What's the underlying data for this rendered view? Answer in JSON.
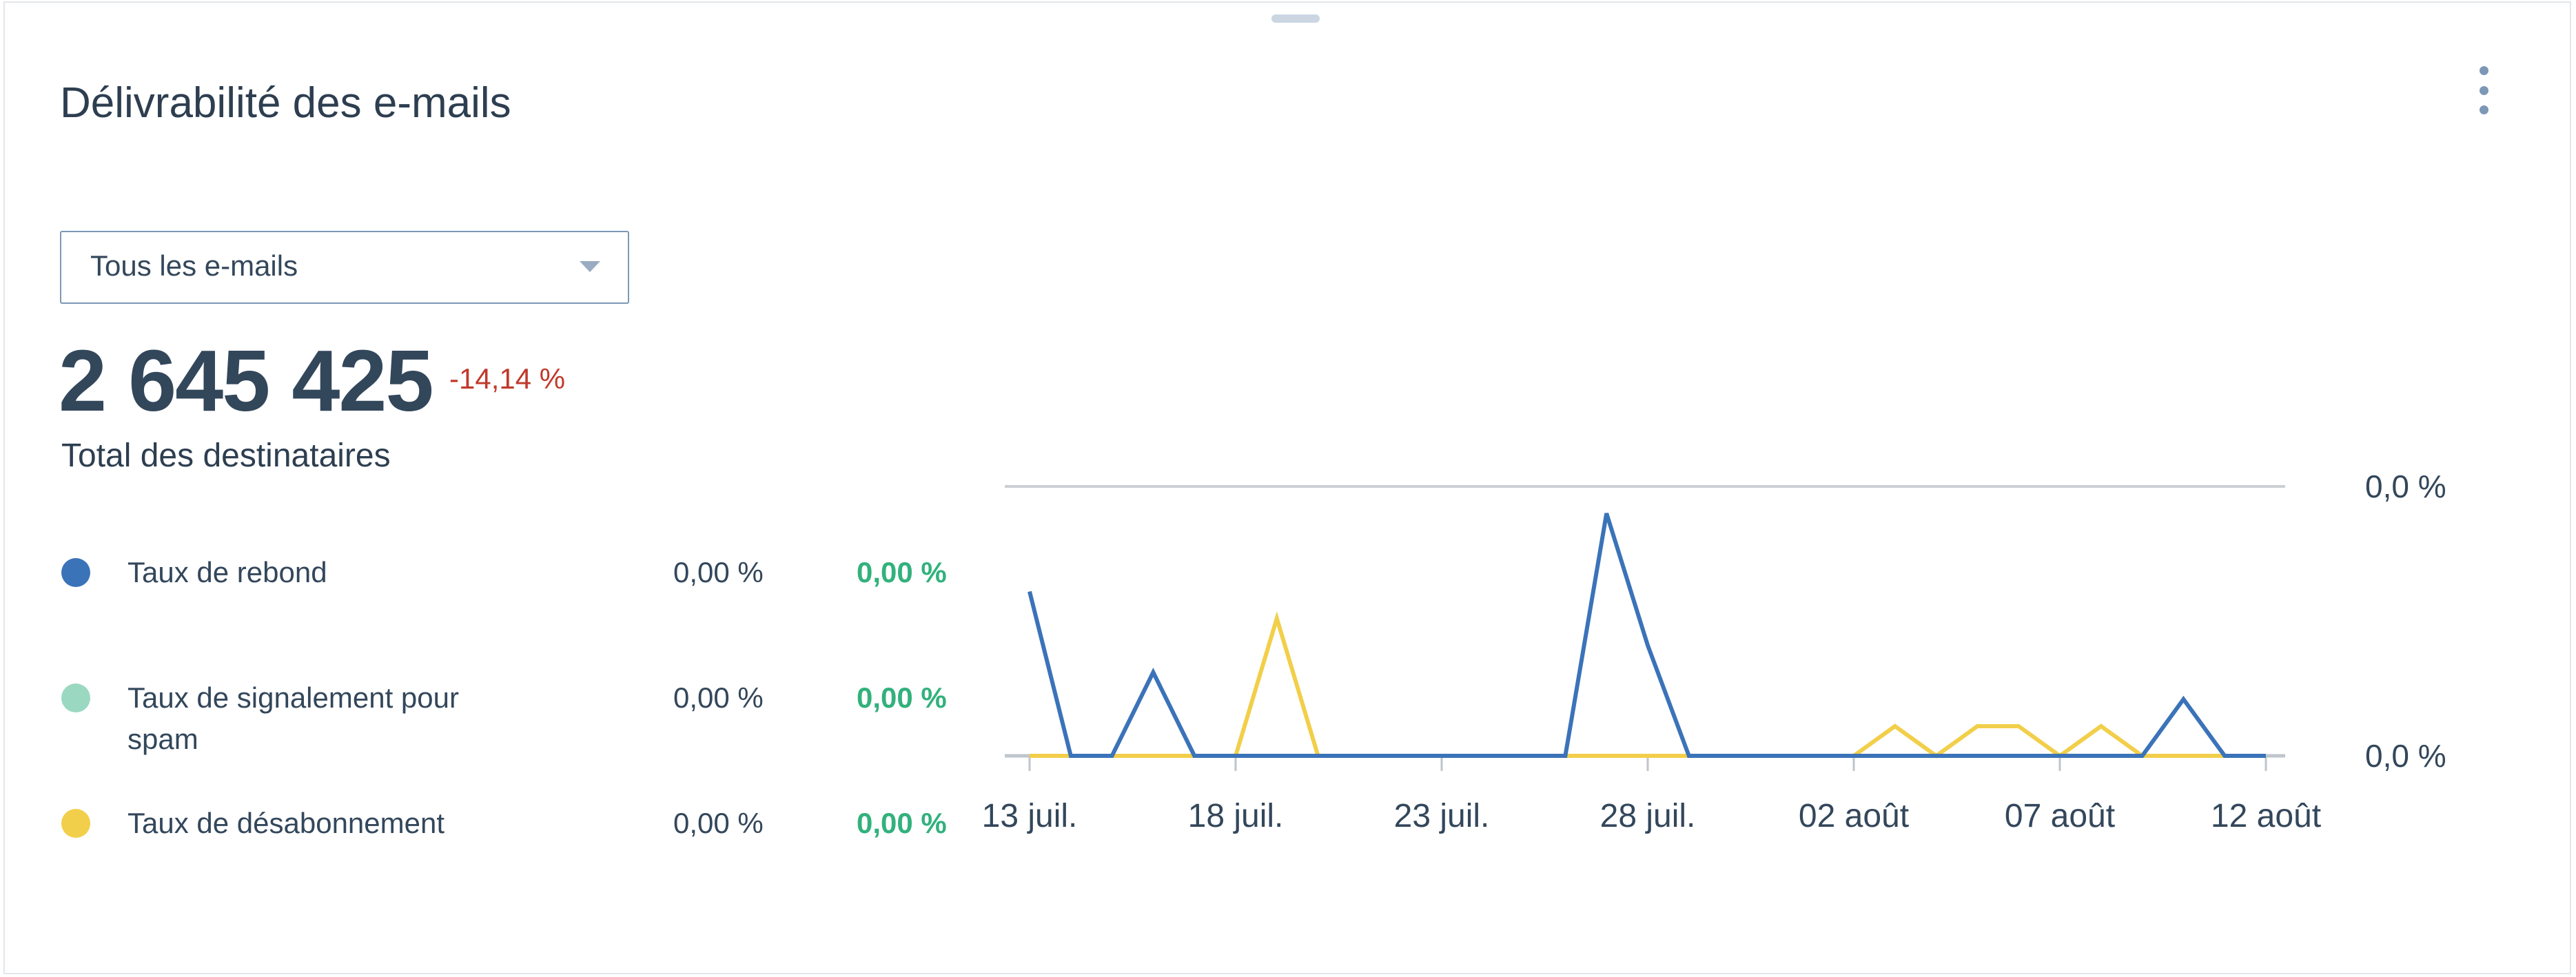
{
  "header": {
    "title": "Délivrabilité des e-mails"
  },
  "filter": {
    "selected": "Tous les e-mails"
  },
  "summary": {
    "total": "2 645 425",
    "change": "-14,14 %",
    "label": "Total des destinataires"
  },
  "metrics": [
    {
      "label": "Taux de rebond",
      "value": "0,00 %",
      "delta": "0,00 %",
      "color": "#3b73b9"
    },
    {
      "label": "Taux de signalement pour spam",
      "value": "0,00 %",
      "delta": "0,00 %",
      "color": "#9bd8c1"
    },
    {
      "label": "Taux de désabonnement",
      "value": "0,00 %",
      "delta": "0,00 %",
      "color": "#f2cf4a"
    }
  ],
  "chart_data": {
    "type": "line",
    "x": [
      "13 juil.",
      "14 juil.",
      "15 juil.",
      "16 juil.",
      "17 juil.",
      "18 juil.",
      "19 juil.",
      "20 juil.",
      "21 juil.",
      "22 juil.",
      "23 juil.",
      "24 juil.",
      "25 juil.",
      "26 juil.",
      "27 juil.",
      "28 juil.",
      "29 juil.",
      "30 juil.",
      "31 juil.",
      "01 août",
      "02 août",
      "03 août",
      "04 août",
      "05 août",
      "06 août",
      "07 août",
      "08 août",
      "09 août",
      "10 août",
      "11 août",
      "12 août"
    ],
    "x_tick_labels": [
      "13 juil.",
      "18 juil.",
      "23 juil.",
      "28 juil.",
      "02 août",
      "07 août",
      "12 août"
    ],
    "y_tick_labels": [
      "0,0 %",
      "0,0 %"
    ],
    "y_range": [
      0,
      1e-05
    ],
    "grid": true,
    "series": [
      {
        "values": [
          6.1e-06,
          0,
          0,
          3.1e-06,
          0,
          0,
          0,
          0,
          0,
          0,
          0,
          0,
          0,
          0,
          9e-06,
          4.1e-06,
          0,
          0,
          0,
          0,
          0,
          0,
          0,
          0,
          0,
          0,
          0,
          0,
          2.1e-06,
          0,
          0
        ],
        "color": "#3b73b9"
      },
      {
        "values": [
          0,
          0,
          0,
          0,
          0,
          0,
          0,
          0,
          0,
          0,
          0,
          0,
          0,
          0,
          0,
          0,
          0,
          0,
          0,
          0,
          0,
          0,
          0,
          0,
          0,
          0,
          0,
          0,
          0,
          0,
          0
        ],
        "color": "#9bd8c1"
      },
      {
        "values": [
          0,
          0,
          0,
          0,
          0,
          0,
          5.1e-06,
          0,
          0,
          0,
          0,
          0,
          0,
          0,
          0,
          0,
          0,
          0,
          0,
          0,
          0,
          1.1e-06,
          0,
          1.1e-06,
          1.1e-06,
          0,
          1.1e-06,
          0,
          0,
          0,
          0
        ],
        "color": "#f2cf4a"
      }
    ]
  }
}
